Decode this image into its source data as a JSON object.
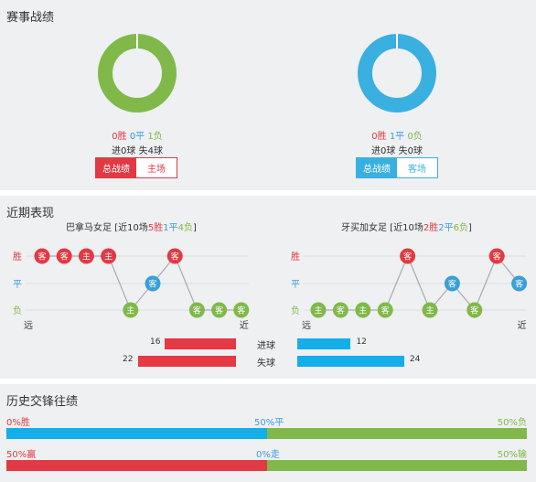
{
  "record": {
    "title": "赛事战绩",
    "home": {
      "win": "0胜",
      "draw": "0平",
      "loss": "1负",
      "goals": "进0球 失4球",
      "tab_total": "总战绩",
      "tab_venue": "主场",
      "donut": {
        "win": 0,
        "draw": 0,
        "loss": 1
      },
      "color": "#80b94a"
    },
    "away": {
      "win": "0胜",
      "draw": "1平",
      "loss": "0负",
      "goals": "进0球 失0球",
      "tab_total": "总战绩",
      "tab_venue": "客场",
      "donut": {
        "win": 0,
        "draw": 1,
        "loss": 0
      },
      "color": "#3ab0e0"
    }
  },
  "recent": {
    "title": "近期表现",
    "home": {
      "name": "巴拿马女足",
      "summary_prefix": "[近10场",
      "wins": "5胜",
      "draws": "1平",
      "losses": "4负",
      "summary_suffix": "]",
      "results": [
        "W",
        "W",
        "W",
        "W",
        "L",
        "D",
        "W",
        "L",
        "L",
        "L"
      ],
      "venues": [
        "客",
        "客",
        "主",
        "主",
        "主",
        "客",
        "客",
        "客",
        "客",
        "客"
      ]
    },
    "away": {
      "name": "牙买加女足",
      "summary_prefix": "[近10场",
      "wins": "2胜",
      "draws": "2平",
      "losses": "6负",
      "summary_suffix": "]",
      "results": [
        "L",
        "L",
        "L",
        "L",
        "W",
        "L",
        "D",
        "L",
        "W",
        "D"
      ],
      "venues": [
        "主",
        "客",
        "主",
        "客",
        "客",
        "主",
        "客",
        "客",
        "客",
        "客"
      ]
    },
    "axis": {
      "win": "胜",
      "draw": "平",
      "loss": "负",
      "far": "远",
      "near": "近"
    },
    "scored": {
      "label": "进球",
      "home": 16,
      "away": 12
    },
    "conceded": {
      "label": "失球",
      "home": 22,
      "away": 24
    }
  },
  "history": {
    "title": "历史交锋往绩",
    "row1": {
      "win": "0%胜",
      "draw": "50%平",
      "loss": "50%负",
      "win_pct": 0,
      "draw_pct": 50,
      "loss_pct": 50
    },
    "row2": {
      "win": "50%赢",
      "draw": "0%走",
      "loss": "50%输",
      "win_pct": 50,
      "draw_pct": 0,
      "loss_pct": 50
    }
  },
  "colors": {
    "win": "#e03a44",
    "draw": "#3a9fd8",
    "loss": "#80b94a",
    "blue_bar": "#14aee8",
    "red_bar": "#e53944"
  }
}
